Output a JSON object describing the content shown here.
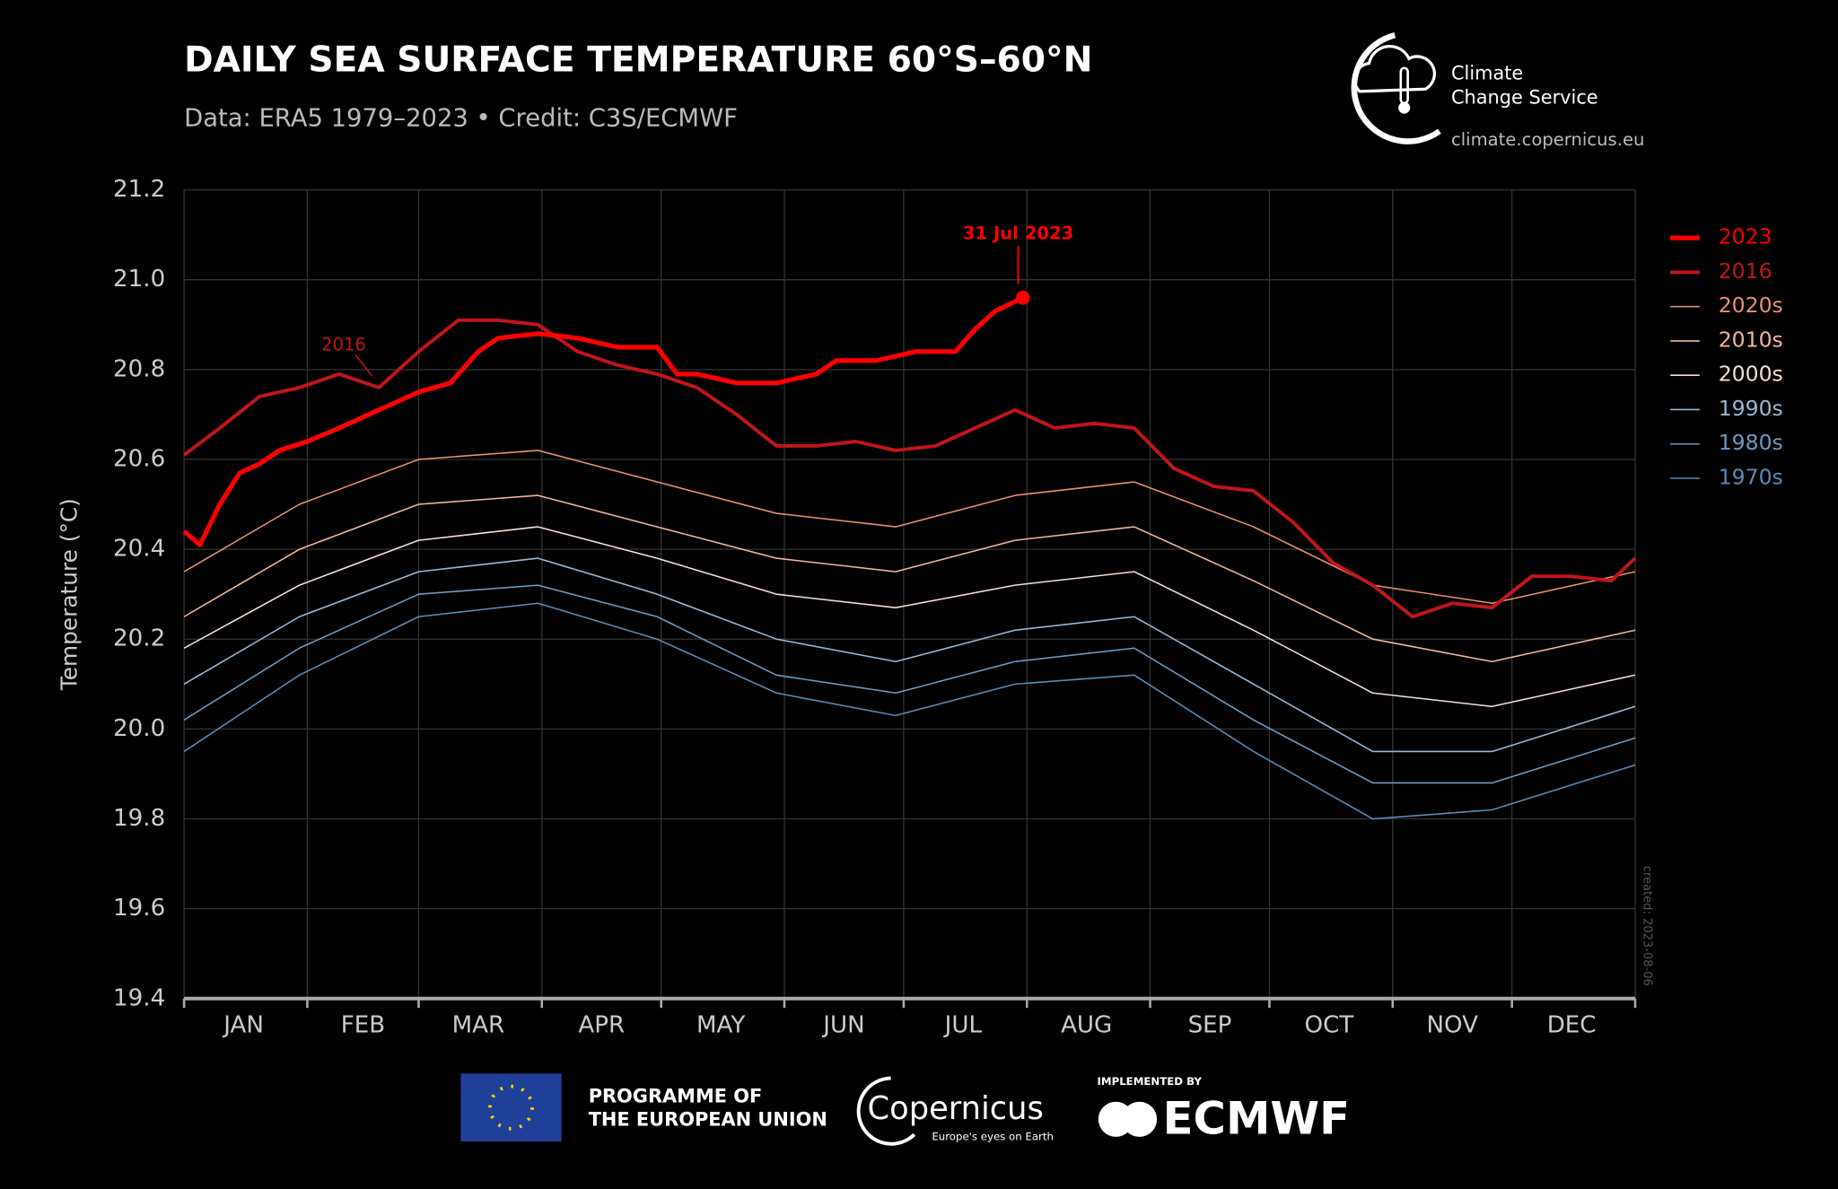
{
  "chart_data": {
    "type": "line",
    "title": "DAILY SEA SURFACE TEMPERATURE 60°S–60°N",
    "subtitle": "Data: ERA5 1979–2023 • Credit: C3S/ECMWF",
    "y_label": "Temperature (°C)",
    "xlim": [
      1,
      366
    ],
    "xgrid": [
      1,
      32,
      60,
      91,
      121,
      152,
      182,
      213,
      244,
      274,
      305,
      335,
      366
    ],
    "xticks": [
      {
        "value": 16,
        "label": "JAN"
      },
      {
        "value": 46,
        "label": "FEB"
      },
      {
        "value": 75,
        "label": "MAR"
      },
      {
        "value": 106,
        "label": "APR"
      },
      {
        "value": 136,
        "label": "MAY"
      },
      {
        "value": 167,
        "label": "JUN"
      },
      {
        "value": 197,
        "label": "JUL"
      },
      {
        "value": 228,
        "label": "AUG"
      },
      {
        "value": 259,
        "label": "SEP"
      },
      {
        "value": 289,
        "label": "OCT"
      },
      {
        "value": 320,
        "label": "NOV"
      },
      {
        "value": 350,
        "label": "DEC"
      }
    ],
    "ylim": [
      19.4,
      21.2
    ],
    "yticks": [
      19.4,
      19.6,
      19.8,
      {
        "value": 20.0,
        "label": "20.0"
      },
      20.2,
      20.4,
      20.6,
      20.8,
      {
        "value": 21.0,
        "label": "21.0"
      },
      21.2
    ],
    "grid": true,
    "series": [
      {
        "name": "2023",
        "color": "#ff0000",
        "width": 4,
        "x": [
          1,
          5,
          10,
          15,
          20,
          25,
          32,
          40,
          50,
          60,
          68,
          75,
          80,
          90,
          100,
          110,
          120,
          125,
          130,
          140,
          150,
          160,
          165,
          175,
          185,
          195,
          200,
          205,
          212
        ],
        "values": [
          20.44,
          20.41,
          20.5,
          20.57,
          20.59,
          20.62,
          20.64,
          20.67,
          20.71,
          20.75,
          20.77,
          20.84,
          20.87,
          20.88,
          20.87,
          20.85,
          20.85,
          20.79,
          20.79,
          20.77,
          20.77,
          20.79,
          20.82,
          20.82,
          20.84,
          20.84,
          20.89,
          20.93,
          20.96
        ]
      },
      {
        "name": "2016",
        "color": "#c0151a",
        "width": 3,
        "x": [
          1,
          10,
          20,
          30,
          40,
          50,
          60,
          70,
          80,
          90,
          100,
          110,
          120,
          130,
          140,
          150,
          160,
          170,
          180,
          190,
          200,
          210,
          220,
          230,
          240,
          250,
          260,
          270,
          280,
          290,
          300,
          310,
          320,
          330,
          340,
          350,
          360,
          366
        ],
        "values": [
          20.61,
          20.67,
          20.74,
          20.76,
          20.79,
          20.76,
          20.84,
          20.91,
          20.91,
          20.9,
          20.84,
          20.81,
          20.79,
          20.76,
          20.7,
          20.63,
          20.63,
          20.64,
          20.62,
          20.63,
          20.67,
          20.71,
          20.67,
          20.68,
          20.67,
          20.58,
          20.54,
          20.53,
          20.46,
          20.37,
          20.32,
          20.25,
          20.28,
          20.27,
          20.34,
          20.34,
          20.33,
          20.38
        ]
      },
      {
        "name": "2020s",
        "color": "#e8906e",
        "width": 1.2,
        "x": [
          1,
          30,
          60,
          90,
          120,
          150,
          180,
          210,
          240,
          270,
          300,
          330,
          366
        ],
        "values": [
          20.35,
          20.5,
          20.6,
          20.62,
          20.55,
          20.48,
          20.45,
          20.52,
          20.55,
          20.45,
          20.32,
          20.28,
          20.35
        ]
      },
      {
        "name": "2010s",
        "color": "#eeb79c",
        "width": 1.2,
        "x": [
          1,
          30,
          60,
          90,
          120,
          150,
          180,
          210,
          240,
          270,
          300,
          330,
          366
        ],
        "values": [
          20.25,
          20.4,
          20.5,
          20.52,
          20.45,
          20.38,
          20.35,
          20.42,
          20.45,
          20.33,
          20.2,
          20.15,
          20.22
        ]
      },
      {
        "name": "2000s",
        "color": "#f5e0d5",
        "width": 1.2,
        "x": [
          1,
          30,
          60,
          90,
          120,
          150,
          180,
          210,
          240,
          270,
          300,
          330,
          366
        ],
        "values": [
          20.18,
          20.32,
          20.42,
          20.45,
          20.38,
          20.3,
          20.27,
          20.32,
          20.35,
          20.22,
          20.08,
          20.05,
          20.12
        ]
      },
      {
        "name": "1990s",
        "color": "#9bb8d3",
        "width": 1.2,
        "x": [
          1,
          30,
          60,
          90,
          120,
          150,
          180,
          210,
          240,
          270,
          300,
          330,
          366
        ],
        "values": [
          20.1,
          20.25,
          20.35,
          20.38,
          20.3,
          20.2,
          20.15,
          20.22,
          20.25,
          20.1,
          19.95,
          19.95,
          20.05
        ]
      },
      {
        "name": "1980s",
        "color": "#6e9ac0",
        "width": 1.2,
        "x": [
          1,
          30,
          60,
          90,
          120,
          150,
          180,
          210,
          240,
          270,
          300,
          330,
          366
        ],
        "values": [
          20.02,
          20.18,
          20.3,
          20.32,
          20.25,
          20.12,
          20.08,
          20.15,
          20.18,
          20.02,
          19.88,
          19.88,
          19.98
        ]
      },
      {
        "name": "1970s",
        "color": "#5b8ab5",
        "width": 1.2,
        "x": [
          1,
          30,
          60,
          90,
          120,
          150,
          180,
          210,
          240,
          270,
          300,
          330,
          366
        ],
        "values": [
          19.95,
          20.12,
          20.25,
          20.28,
          20.2,
          20.08,
          20.03,
          20.1,
          20.12,
          19.95,
          19.8,
          19.82,
          19.92
        ]
      }
    ],
    "annotations": [
      {
        "text": "31 Jul 2023",
        "series": 0,
        "color": "#ff0000"
      },
      {
        "text": "2016",
        "series": 1,
        "point": 5,
        "color": "#c0151a"
      }
    ],
    "created": "created: 2023-08-06"
  },
  "branding": {
    "logo_line1": "Climate",
    "logo_line2": "Change Service",
    "url": "climate.copernicus.eu",
    "eu_line1": "PROGRAMME OF",
    "eu_line2": "THE EUROPEAN UNION",
    "copernicus": "Copernicus",
    "copernicus_tagline": "Europe's eyes on Earth",
    "implemented_by": "IMPLEMENTED BY",
    "ecmwf": "ECMWF"
  }
}
